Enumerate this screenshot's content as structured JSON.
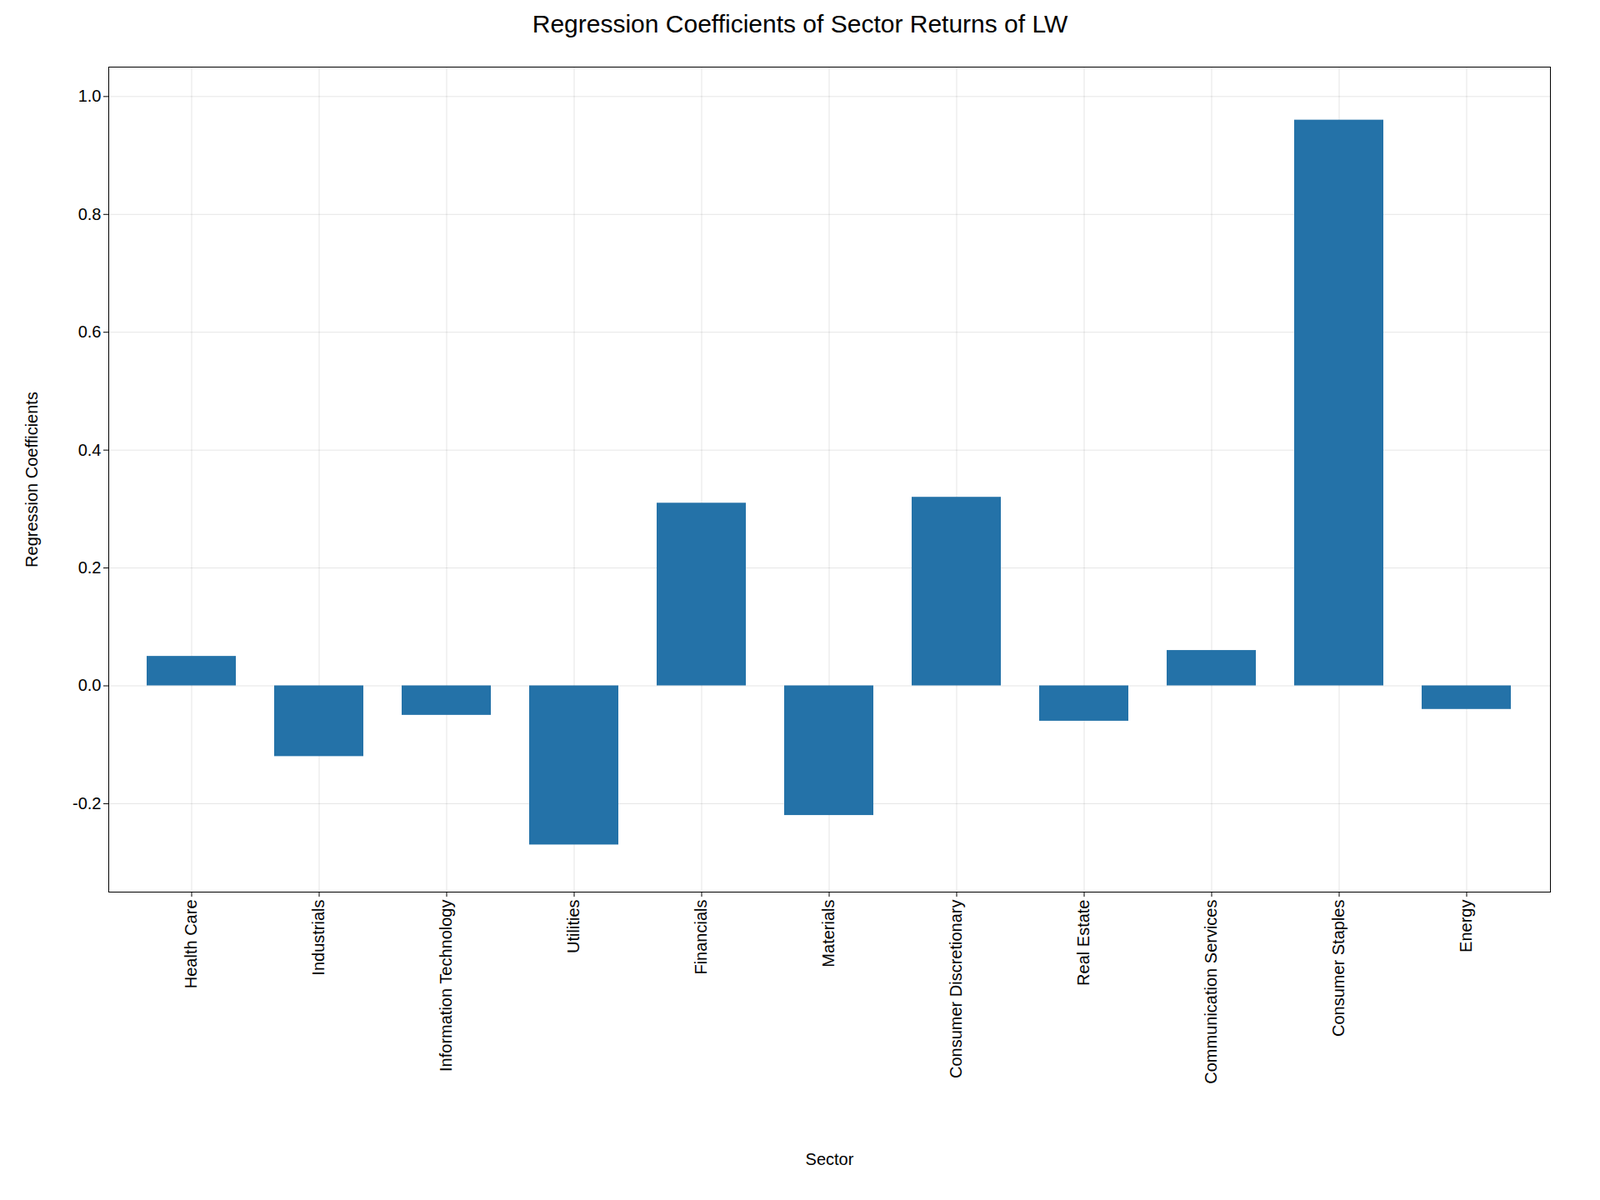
{
  "chart_data": {
    "type": "bar",
    "title": "Regression Coefficients of Sector Returns of LW",
    "xlabel": "Sector",
    "ylabel": "Regression Coefficients",
    "categories": [
      "Health Care",
      "Industrials",
      "Information Technology",
      "Utilities",
      "Financials",
      "Materials",
      "Consumer Discretionary",
      "Real Estate",
      "Communication Services",
      "Consumer Staples",
      "Energy"
    ],
    "values": [
      0.05,
      -0.12,
      -0.05,
      -0.27,
      0.31,
      -0.22,
      0.32,
      -0.06,
      0.06,
      0.96,
      -0.04
    ],
    "color": "#2472a8",
    "ylim": [
      -0.35,
      1.05
    ],
    "yticks": [
      -0.2,
      {
        "value": 0,
        "label": "0.0"
      },
      0.2,
      0.4,
      0.6,
      0.8,
      {
        "value": 1,
        "label": "1.0"
      }
    ],
    "grid": true
  }
}
